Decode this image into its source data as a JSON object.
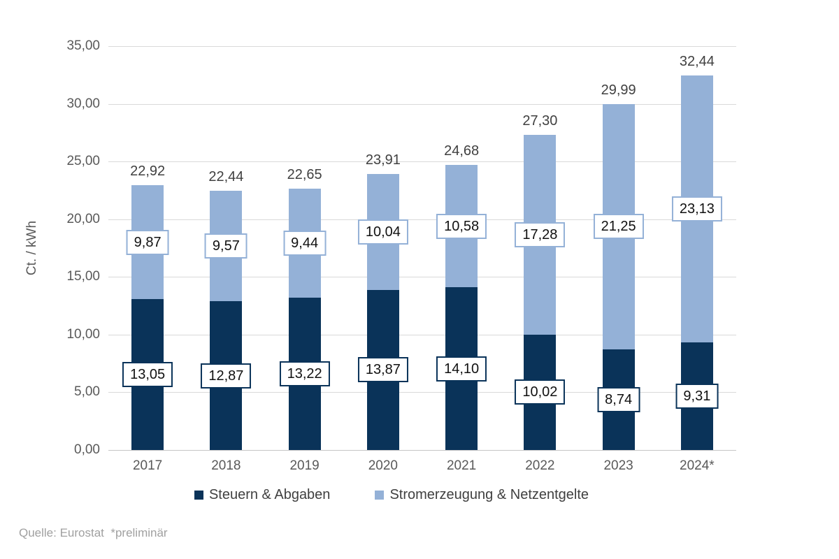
{
  "chart_data": {
    "type": "bar",
    "stacked": true,
    "title": "",
    "xlabel": "",
    "ylabel": "Ct. / kWh",
    "ylim": [
      0,
      35
    ],
    "grid": true,
    "legend_position": "bottom",
    "background_color": "#ffffff",
    "gridline_color": "#d9d9d9",
    "tick_label_color": "#595959",
    "categories": [
      "2017",
      "2018",
      "2019",
      "2020",
      "2021",
      "2022",
      "2023",
      "2024*"
    ],
    "yticks": {
      "values": [
        0,
        5,
        10,
        15,
        20,
        25,
        30,
        35
      ],
      "labels": [
        "0,00",
        "5,00",
        "10,00",
        "15,00",
        "20,00",
        "25,00",
        "30,00",
        "35,00"
      ]
    },
    "series": [
      {
        "name": "Steuern & Abgaben",
        "color": "#0a3359",
        "values": [
          13.05,
          12.87,
          13.22,
          13.87,
          14.1,
          10.02,
          8.74,
          9.31
        ],
        "value_labels": [
          "13,05",
          "12,87",
          "13,22",
          "13,87",
          "14,10",
          "10,02",
          "8,74",
          "9,31"
        ]
      },
      {
        "name": "Stromerzeugung & Netzentgelte",
        "color": "#94b1d7",
        "values": [
          9.87,
          9.57,
          9.44,
          10.04,
          10.58,
          17.28,
          21.25,
          23.13
        ],
        "value_labels": [
          "9,87",
          "9,57",
          "9,44",
          "10,04",
          "10,58",
          "17,28",
          "21,25",
          "23,13"
        ]
      }
    ],
    "totals": [
      22.92,
      22.44,
      22.65,
      23.91,
      24.68,
      27.3,
      29.99,
      32.44
    ],
    "total_labels": [
      "22,92",
      "22,44",
      "22,65",
      "23,91",
      "24,68",
      "27,30",
      "29,99",
      "32,44"
    ]
  },
  "legend": {
    "items": [
      {
        "label": "Steuern & Abgaben",
        "color": "#0a3359"
      },
      {
        "label": "Stromerzeugung & Netzentgelte",
        "color": "#94b1d7"
      }
    ]
  },
  "footer": {
    "source": "Quelle: Eurostat  *preliminär"
  }
}
